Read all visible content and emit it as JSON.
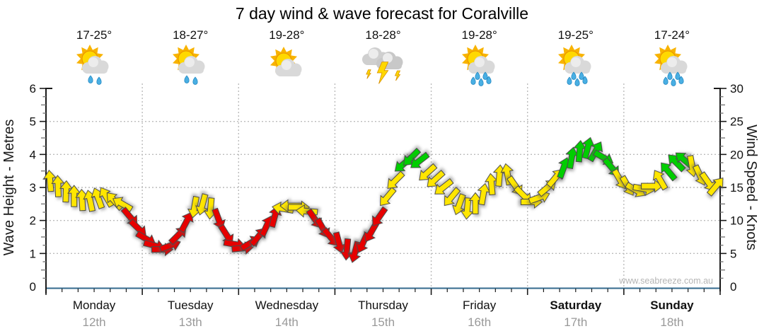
{
  "title": "7 day wind & wave forecast for Coralville",
  "watermark": "www.seabreeze.com.au",
  "days": [
    {
      "name": "Monday",
      "date": "12th",
      "temp": "17-25°",
      "icon": "sun-cloud-rain",
      "bold": false
    },
    {
      "name": "Tuesday",
      "date": "13th",
      "temp": "18-27°",
      "icon": "sun-cloud-rain",
      "bold": false
    },
    {
      "name": "Wednesday",
      "date": "14th",
      "temp": "19-28°",
      "icon": "sun-cloud",
      "bold": false
    },
    {
      "name": "Thursday",
      "date": "15th",
      "temp": "18-28°",
      "icon": "storm",
      "bold": false
    },
    {
      "name": "Friday",
      "date": "16th",
      "temp": "19-28°",
      "icon": "sun-cloud-showers",
      "bold": false
    },
    {
      "name": "Saturday",
      "date": "17th",
      "temp": "19-25°",
      "icon": "sun-cloud-showers",
      "bold": true
    },
    {
      "name": "Sunday",
      "date": "18th",
      "temp": "17-24°",
      "icon": "sun-cloud-showers",
      "bold": true
    }
  ],
  "chart_data": {
    "type": "wind-arrow-timeseries",
    "left_axis": {
      "label": "Wave Height - Metres",
      "ticks": [
        0,
        1,
        2,
        3,
        4,
        5,
        6
      ],
      "range": [
        0,
        6
      ]
    },
    "right_axis": {
      "label": "Wind Speed - Knots",
      "ticks": [
        0,
        5,
        10,
        15,
        20,
        25,
        30
      ],
      "range": [
        0,
        30
      ]
    },
    "gridlines": {
      "horizontal_at_knots": [
        5,
        10,
        15,
        20,
        25
      ],
      "vertical_at_day_boundaries": true
    },
    "wave_height_series": "flat at ~0 metres (blue baseline)",
    "arrows_per_day": 12,
    "arrow_colors": {
      "y": "#ffe600",
      "r": "#e60000",
      "g": "#00ce00"
    },
    "arrows": [
      {
        "kn": 16.0,
        "dir": 355,
        "c": "y"
      },
      {
        "kn": 15.2,
        "dir": 358,
        "c": "y"
      },
      {
        "kn": 14.4,
        "dir": 2,
        "c": "y"
      },
      {
        "kn": 13.7,
        "dir": 0,
        "c": "y"
      },
      {
        "kn": 13.1,
        "dir": 357,
        "c": "y"
      },
      {
        "kn": 13.0,
        "dir": 348,
        "c": "y"
      },
      {
        "kn": 13.4,
        "dir": 340,
        "c": "y"
      },
      {
        "kn": 13.6,
        "dir": 330,
        "c": "y"
      },
      {
        "kn": 13.0,
        "dir": 318,
        "c": "y"
      },
      {
        "kn": 12.5,
        "dir": 300,
        "c": "y"
      },
      {
        "kn": 10.5,
        "dir": 140,
        "c": "r"
      },
      {
        "kn": 8.8,
        "dir": 134,
        "c": "r"
      },
      {
        "kn": 7.2,
        "dir": 120,
        "c": "r"
      },
      {
        "kn": 6.2,
        "dir": 105,
        "c": "r"
      },
      {
        "kn": 5.6,
        "dir": 90,
        "c": "r"
      },
      {
        "kn": 6.2,
        "dir": 70,
        "c": "r"
      },
      {
        "kn": 7.8,
        "dir": 45,
        "c": "r"
      },
      {
        "kn": 9.8,
        "dir": 28,
        "c": "r"
      },
      {
        "kn": 12.0,
        "dir": 190,
        "c": "y"
      },
      {
        "kn": 12.4,
        "dir": 195,
        "c": "y"
      },
      {
        "kn": 11.8,
        "dir": 185,
        "c": "y"
      },
      {
        "kn": 10.2,
        "dir": 160,
        "c": "r"
      },
      {
        "kn": 7.8,
        "dir": 148,
        "c": "r"
      },
      {
        "kn": 6.4,
        "dir": 100,
        "c": "r"
      },
      {
        "kn": 5.8,
        "dir": 85,
        "c": "r"
      },
      {
        "kn": 6.6,
        "dir": 60,
        "c": "r"
      },
      {
        "kn": 7.6,
        "dir": 40,
        "c": "r"
      },
      {
        "kn": 9.2,
        "dir": 25,
        "c": "r"
      },
      {
        "kn": 10.6,
        "dir": 15,
        "c": "r"
      },
      {
        "kn": 11.8,
        "dir": 280,
        "c": "y"
      },
      {
        "kn": 12.2,
        "dir": 270,
        "c": "y"
      },
      {
        "kn": 12.0,
        "dir": 90,
        "c": "y"
      },
      {
        "kn": 11.4,
        "dir": 275,
        "c": "y"
      },
      {
        "kn": 10.2,
        "dir": 145,
        "c": "r"
      },
      {
        "kn": 8.8,
        "dir": 150,
        "c": "r"
      },
      {
        "kn": 7.4,
        "dir": 140,
        "c": "r"
      },
      {
        "kn": 6.6,
        "dir": 165,
        "c": "r"
      },
      {
        "kn": 5.6,
        "dir": 185,
        "c": "r"
      },
      {
        "kn": 5.2,
        "dir": 195,
        "c": "r"
      },
      {
        "kn": 6.6,
        "dir": 205,
        "c": "r"
      },
      {
        "kn": 8.2,
        "dir": 210,
        "c": "r"
      },
      {
        "kn": 10.5,
        "dir": 215,
        "c": "r"
      },
      {
        "kn": 13.5,
        "dir": 220,
        "c": "y"
      },
      {
        "kn": 16.0,
        "dir": 225,
        "c": "y"
      },
      {
        "kn": 18.5,
        "dir": 230,
        "c": "g"
      },
      {
        "kn": 19.5,
        "dir": 225,
        "c": "g"
      },
      {
        "kn": 19.0,
        "dir": 232,
        "c": "g"
      },
      {
        "kn": 17.2,
        "dir": 228,
        "c": "y"
      },
      {
        "kn": 16.2,
        "dir": 228,
        "c": "y"
      },
      {
        "kn": 15.0,
        "dir": 232,
        "c": "y"
      },
      {
        "kn": 13.5,
        "dir": 220,
        "c": "y"
      },
      {
        "kn": 12.4,
        "dir": 200,
        "c": "y"
      },
      {
        "kn": 11.8,
        "dir": 185,
        "c": "y"
      },
      {
        "kn": 12.6,
        "dir": 0,
        "c": "y"
      },
      {
        "kn": 14.0,
        "dir": 10,
        "c": "y"
      },
      {
        "kn": 15.5,
        "dir": 355,
        "c": "y"
      },
      {
        "kn": 16.8,
        "dir": 5,
        "c": "y"
      },
      {
        "kn": 17.0,
        "dir": 350,
        "c": "y"
      },
      {
        "kn": 15.2,
        "dir": 145,
        "c": "y"
      },
      {
        "kn": 13.8,
        "dir": 135,
        "c": "y"
      },
      {
        "kn": 12.8,
        "dir": 90,
        "c": "y"
      },
      {
        "kn": 13.5,
        "dir": 70,
        "c": "y"
      },
      {
        "kn": 15.0,
        "dir": 50,
        "c": "y"
      },
      {
        "kn": 16.5,
        "dir": 40,
        "c": "y"
      },
      {
        "kn": 18.0,
        "dir": 20,
        "c": "g"
      },
      {
        "kn": 19.5,
        "dir": 10,
        "c": "g"
      },
      {
        "kn": 20.5,
        "dir": 5,
        "c": "g"
      },
      {
        "kn": 21.0,
        "dir": 15,
        "c": "g"
      },
      {
        "kn": 20.5,
        "dir": 30,
        "c": "g"
      },
      {
        "kn": 19.5,
        "dir": 120,
        "c": "g"
      },
      {
        "kn": 18.0,
        "dir": 140,
        "c": "g"
      },
      {
        "kn": 16.2,
        "dir": 150,
        "c": "y"
      },
      {
        "kn": 15.2,
        "dir": 150,
        "c": "y"
      },
      {
        "kn": 14.6,
        "dir": 120,
        "c": "y"
      },
      {
        "kn": 14.8,
        "dir": 100,
        "c": "y"
      },
      {
        "kn": 15.2,
        "dir": 90,
        "c": "y"
      },
      {
        "kn": 16.2,
        "dir": 330,
        "c": "y"
      },
      {
        "kn": 17.5,
        "dir": 320,
        "c": "g"
      },
      {
        "kn": 18.8,
        "dir": 315,
        "c": "g"
      },
      {
        "kn": 19.2,
        "dir": 310,
        "c": "g"
      },
      {
        "kn": 18.2,
        "dir": 170,
        "c": "y"
      },
      {
        "kn": 16.8,
        "dir": 155,
        "c": "y"
      },
      {
        "kn": 15.8,
        "dir": 145,
        "c": "y"
      },
      {
        "kn": 15.2,
        "dir": 40,
        "c": "y"
      }
    ],
    "style_colors": {
      "baseline_blue": "#336a8e",
      "grid": "#bcbcbc",
      "axis": "#1a1a1a",
      "date_gray": "#999999",
      "watermark_gray": "#b5b5b5"
    }
  }
}
